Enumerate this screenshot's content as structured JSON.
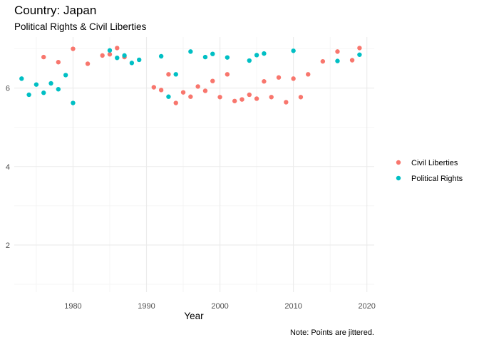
{
  "chart_data": {
    "type": "scatter",
    "title": "Country: Japan",
    "subtitle": "Political Rights & Civil Liberties",
    "xlabel": "Year",
    "ylabel": "",
    "caption": "Note: Points are jittered.",
    "xlim": [
      1972,
      2021
    ],
    "ylim": [
      0.8,
      7.3
    ],
    "x_ticks": [
      1980,
      1990,
      2000,
      2010,
      2020
    ],
    "y_ticks": [
      2,
      4,
      6
    ],
    "grid": true,
    "legend_position": "right",
    "series": [
      {
        "name": "Civil Liberties",
        "color": "#F8766D",
        "points": [
          [
            1976,
            6.79
          ],
          [
            1978,
            6.66
          ],
          [
            1980,
            7.0
          ],
          [
            1982,
            6.62
          ],
          [
            1984,
            6.83
          ],
          [
            1985,
            6.86
          ],
          [
            1986,
            7.02
          ],
          [
            1987,
            6.79
          ],
          [
            1991,
            6.02
          ],
          [
            1992,
            5.95
          ],
          [
            1993,
            6.35
          ],
          [
            1994,
            5.62
          ],
          [
            1995,
            5.89
          ],
          [
            1996,
            5.78
          ],
          [
            1997,
            6.04
          ],
          [
            1998,
            5.93
          ],
          [
            1999,
            6.18
          ],
          [
            2000,
            5.77
          ],
          [
            2001,
            6.35
          ],
          [
            2002,
            5.67
          ],
          [
            2003,
            5.71
          ],
          [
            2004,
            5.83
          ],
          [
            2005,
            5.73
          ],
          [
            2006,
            6.17
          ],
          [
            2007,
            5.77
          ],
          [
            2008,
            6.27
          ],
          [
            2009,
            5.64
          ],
          [
            2010,
            6.24
          ],
          [
            2011,
            5.77
          ],
          [
            2012,
            6.35
          ],
          [
            2014,
            6.68
          ],
          [
            2016,
            6.93
          ],
          [
            2018,
            6.71
          ],
          [
            2019,
            7.02
          ]
        ]
      },
      {
        "name": "Political Rights",
        "color": "#00BFC4",
        "points": [
          [
            1973,
            6.24
          ],
          [
            1974,
            5.83
          ],
          [
            1975,
            6.09
          ],
          [
            1976,
            5.88
          ],
          [
            1977,
            6.12
          ],
          [
            1978,
            5.97
          ],
          [
            1979,
            6.33
          ],
          [
            1980,
            5.62
          ],
          [
            1985,
            6.96
          ],
          [
            1986,
            6.77
          ],
          [
            1987,
            6.83
          ],
          [
            1988,
            6.64
          ],
          [
            1989,
            6.72
          ],
          [
            1992,
            6.81
          ],
          [
            1993,
            5.78
          ],
          [
            1994,
            6.35
          ],
          [
            1996,
            6.93
          ],
          [
            1998,
            6.79
          ],
          [
            1999,
            6.87
          ],
          [
            2001,
            6.78
          ],
          [
            2004,
            6.7
          ],
          [
            2005,
            6.84
          ],
          [
            2006,
            6.88
          ],
          [
            2010,
            6.95
          ],
          [
            2016,
            6.69
          ],
          [
            2019,
            6.85
          ]
        ]
      }
    ]
  }
}
